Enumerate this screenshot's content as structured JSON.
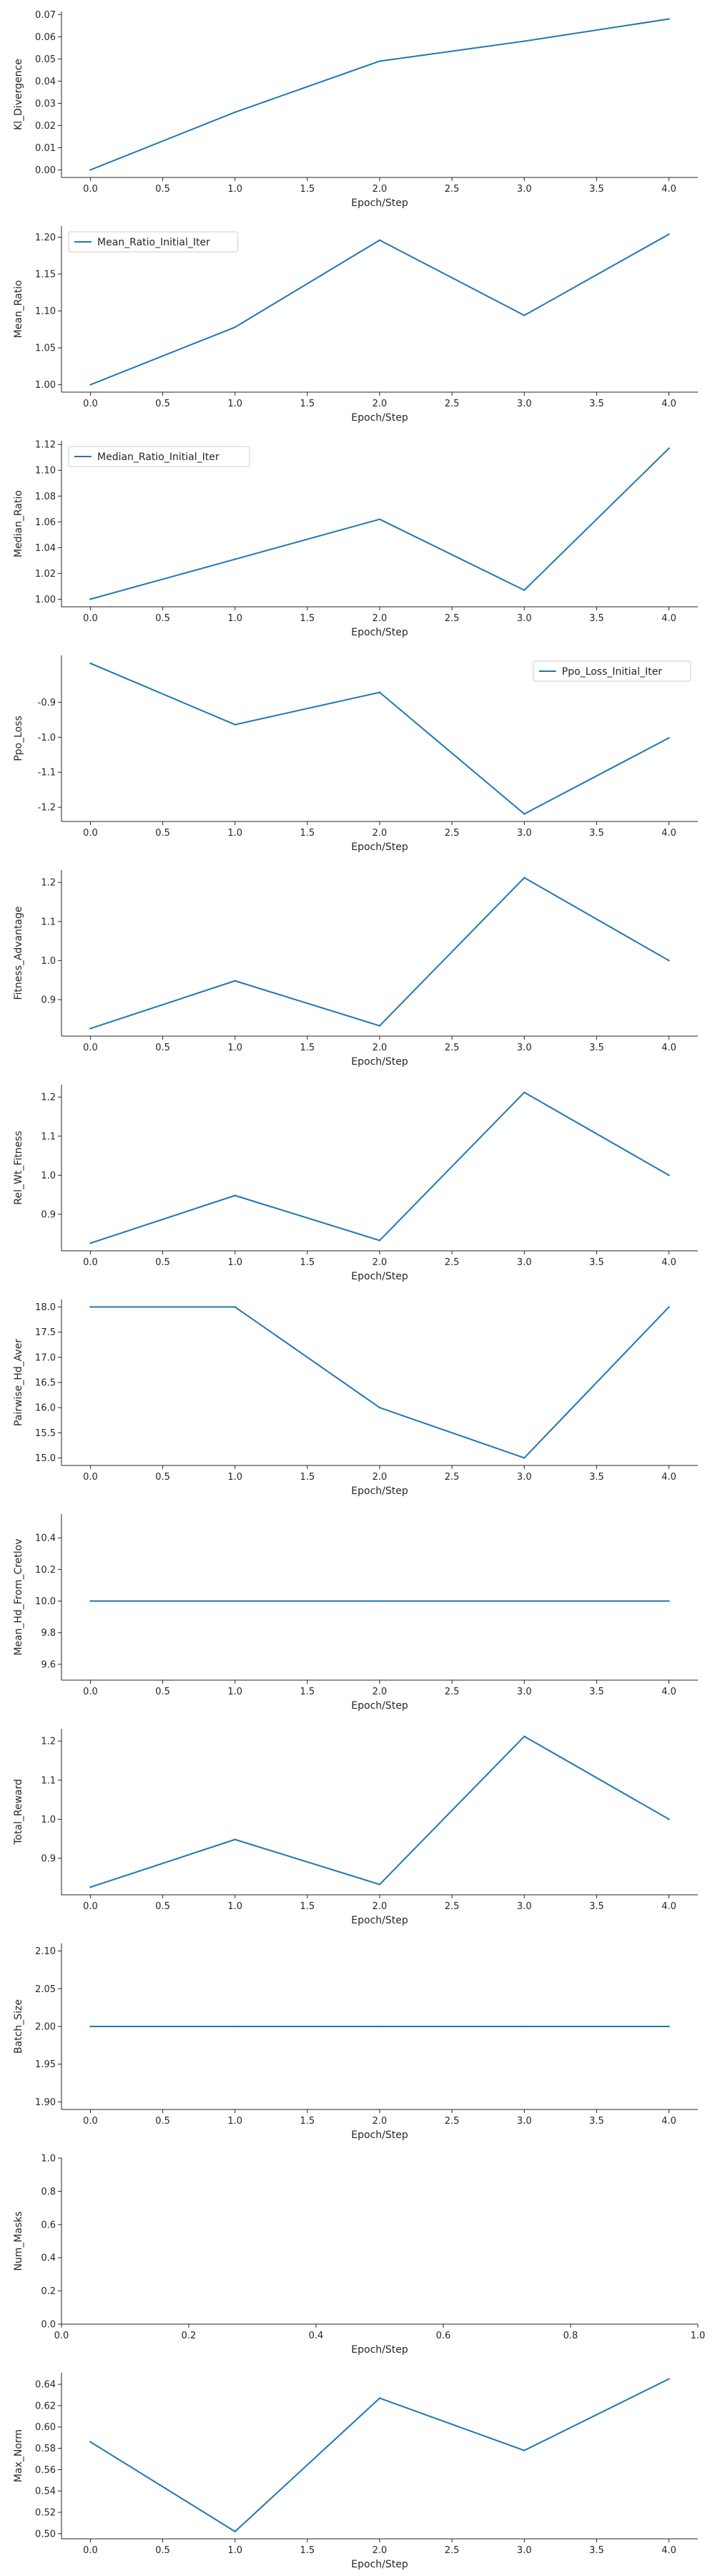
{
  "figure": {
    "background": "#ffffff",
    "line_color": "#1f77b4",
    "axis_color": "#262626",
    "legend_border": "#cccccc"
  },
  "chart_data": [
    {
      "type": "line",
      "xlabel": "Epoch/Step",
      "ylabel": "Kl_Divergence",
      "x": [
        0,
        1,
        2,
        3,
        4
      ],
      "xlim": [
        -0.2,
        4.2
      ],
      "xticks": [
        0,
        0.5,
        1,
        1.5,
        2,
        2.5,
        3,
        3.5,
        4
      ],
      "ylim": [
        -0.0034,
        0.0714
      ],
      "yticks": [
        0,
        0.01,
        0.02,
        0.03,
        0.04,
        0.05,
        0.06,
        0.07
      ],
      "ydecimals": 2,
      "series": [
        {
          "values": [
            0.0,
            0.026,
            0.049,
            0.058,
            0.068
          ]
        }
      ],
      "legend": null,
      "grid": false
    },
    {
      "type": "line",
      "xlabel": "Epoch/Step",
      "ylabel": "Mean_Ratio",
      "x": [
        0,
        1,
        2,
        3,
        4
      ],
      "xlim": [
        -0.2,
        4.2
      ],
      "xticks": [
        0,
        0.5,
        1,
        1.5,
        2,
        2.5,
        3,
        3.5,
        4
      ],
      "ylim": [
        0.99,
        1.215
      ],
      "yticks": [
        1.0,
        1.05,
        1.1,
        1.15,
        1.2
      ],
      "ydecimals": 2,
      "series": [
        {
          "name": "Mean_Ratio_Initial_Iter",
          "values": [
            1.0,
            1.078,
            1.196,
            1.094,
            1.204
          ]
        }
      ],
      "legend": "upper left",
      "grid": false
    },
    {
      "type": "line",
      "xlabel": "Epoch/Step",
      "ylabel": "Median_Ratio",
      "x": [
        0,
        1,
        2,
        3,
        4
      ],
      "xlim": [
        -0.2,
        4.2
      ],
      "xticks": [
        0,
        0.5,
        1,
        1.5,
        2,
        2.5,
        3,
        3.5,
        4
      ],
      "ylim": [
        0.9941,
        1.1229
      ],
      "yticks": [
        1.0,
        1.02,
        1.04,
        1.06,
        1.08,
        1.1,
        1.12
      ],
      "ydecimals": 2,
      "series": [
        {
          "name": "Median_Ratio_Initial_Iter",
          "values": [
            1.0,
            1.031,
            1.062,
            1.007,
            1.117
          ]
        }
      ],
      "legend": "upper left",
      "grid": false
    },
    {
      "type": "line",
      "xlabel": "Epoch/Step",
      "ylabel": "Ppo_Loss",
      "x": [
        0,
        1,
        2,
        3,
        4
      ],
      "xlim": [
        -0.2,
        4.2
      ],
      "xticks": [
        0,
        0.5,
        1,
        1.5,
        2,
        2.5,
        3,
        3.5,
        4
      ],
      "ylim": [
        -1.2405,
        -0.7665
      ],
      "yticks": [
        -1.2,
        -1.1,
        -1.0,
        -0.9
      ],
      "ydecimals": 1,
      "series": [
        {
          "name": "Ppo_Loss_Initial_Iter",
          "values": [
            -0.789,
            -0.964,
            -0.872,
            -1.219,
            -1.002
          ]
        }
      ],
      "legend": "upper right",
      "grid": false
    },
    {
      "type": "line",
      "xlabel": "Epoch/Step",
      "ylabel": "Fitness_Advantage",
      "x": [
        0,
        1,
        2,
        3,
        4
      ],
      "xlim": [
        -0.2,
        4.2
      ],
      "xticks": [
        0,
        0.5,
        1,
        1.5,
        2,
        2.5,
        3,
        3.5,
        4
      ],
      "ylim": [
        0.8065,
        1.2315
      ],
      "yticks": [
        0.9,
        1.0,
        1.1,
        1.2
      ],
      "ydecimals": 1,
      "series": [
        {
          "values": [
            0.826,
            0.948,
            0.833,
            1.212,
            1.0
          ]
        }
      ],
      "legend": null,
      "grid": false
    },
    {
      "type": "line",
      "xlabel": "Epoch/Step",
      "ylabel": "Rel_Wt_Fitness",
      "x": [
        0,
        1,
        2,
        3,
        4
      ],
      "xlim": [
        -0.2,
        4.2
      ],
      "xticks": [
        0,
        0.5,
        1,
        1.5,
        2,
        2.5,
        3,
        3.5,
        4
      ],
      "ylim": [
        0.8065,
        1.2315
      ],
      "yticks": [
        0.9,
        1.0,
        1.1,
        1.2
      ],
      "ydecimals": 1,
      "series": [
        {
          "values": [
            0.826,
            0.948,
            0.833,
            1.212,
            1.0
          ]
        }
      ],
      "legend": null,
      "grid": false
    },
    {
      "type": "line",
      "xlabel": "Epoch/Step",
      "ylabel": "Pairwise_Hd_Aver",
      "x": [
        0,
        1,
        2,
        3,
        4
      ],
      "xlim": [
        -0.2,
        4.2
      ],
      "xticks": [
        0,
        0.5,
        1,
        1.5,
        2,
        2.5,
        3,
        3.5,
        4
      ],
      "ylim": [
        14.85,
        18.15
      ],
      "yticks": [
        15.0,
        15.5,
        16.0,
        16.5,
        17.0,
        17.5,
        18.0
      ],
      "ydecimals": 1,
      "series": [
        {
          "values": [
            18.0,
            18.0,
            16.0,
            15.0,
            18.0
          ]
        }
      ],
      "legend": null,
      "grid": false
    },
    {
      "type": "line",
      "xlabel": "Epoch/Step",
      "ylabel": "Mean_Hd_From_Cretlov",
      "x": [
        0,
        1,
        2,
        3,
        4
      ],
      "xlim": [
        -0.2,
        4.2
      ],
      "xticks": [
        0,
        0.5,
        1,
        1.5,
        2,
        2.5,
        3,
        3.5,
        4
      ],
      "ylim": [
        9.5,
        10.55
      ],
      "yticks": [
        9.6,
        9.8,
        10.0,
        10.2,
        10.4
      ],
      "ydecimals": 1,
      "series": [
        {
          "values": [
            10.0,
            10.0,
            10.0,
            10.0,
            10.0
          ]
        }
      ],
      "legend": null,
      "grid": false
    },
    {
      "type": "line",
      "xlabel": "Epoch/Step",
      "ylabel": "Total_Reward",
      "x": [
        0,
        1,
        2,
        3,
        4
      ],
      "xlim": [
        -0.2,
        4.2
      ],
      "xticks": [
        0,
        0.5,
        1,
        1.5,
        2,
        2.5,
        3,
        3.5,
        4
      ],
      "ylim": [
        0.8065,
        1.2315
      ],
      "yticks": [
        0.9,
        1.0,
        1.1,
        1.2
      ],
      "ydecimals": 1,
      "series": [
        {
          "values": [
            0.826,
            0.948,
            0.833,
            1.212,
            1.0
          ]
        }
      ],
      "legend": null,
      "grid": false
    },
    {
      "type": "line",
      "xlabel": "Epoch/Step",
      "ylabel": "Batch_Size",
      "x": [
        0,
        1,
        2,
        3,
        4
      ],
      "xlim": [
        -0.2,
        4.2
      ],
      "xticks": [
        0,
        0.5,
        1,
        1.5,
        2,
        2.5,
        3,
        3.5,
        4
      ],
      "ylim": [
        1.89,
        2.11
      ],
      "yticks": [
        1.9,
        1.95,
        2.0,
        2.05,
        2.1
      ],
      "ydecimals": 2,
      "series": [
        {
          "values": [
            2.0,
            2.0,
            2.0,
            2.0,
            2.0
          ]
        }
      ],
      "legend": null,
      "grid": false
    },
    {
      "type": "line",
      "xlabel": "Epoch/Step",
      "ylabel": "Num_Masks",
      "x": [],
      "xlim": [
        0,
        1
      ],
      "xticks": [
        0,
        0.2,
        0.4,
        0.6,
        0.8,
        1.0
      ],
      "ylim": [
        0,
        1
      ],
      "yticks": [
        0,
        0.2,
        0.4,
        0.6,
        0.8,
        1.0
      ],
      "ydecimals": 1,
      "series": [],
      "legend": null,
      "grid": false
    },
    {
      "type": "line",
      "xlabel": "Epoch/Step",
      "ylabel": "Max_Norm",
      "x": [
        0,
        1,
        2,
        3,
        4
      ],
      "xlim": [
        -0.2,
        4.2
      ],
      "xticks": [
        0,
        0.5,
        1,
        1.5,
        2,
        2.5,
        3,
        3.5,
        4
      ],
      "ylim": [
        0.4952,
        0.6508
      ],
      "yticks": [
        0.5,
        0.52,
        0.54,
        0.56,
        0.58,
        0.6,
        0.62,
        0.64
      ],
      "ydecimals": 2,
      "series": [
        {
          "values": [
            0.586,
            0.502,
            0.627,
            0.578,
            0.645
          ]
        }
      ],
      "legend": null,
      "grid": false
    }
  ]
}
